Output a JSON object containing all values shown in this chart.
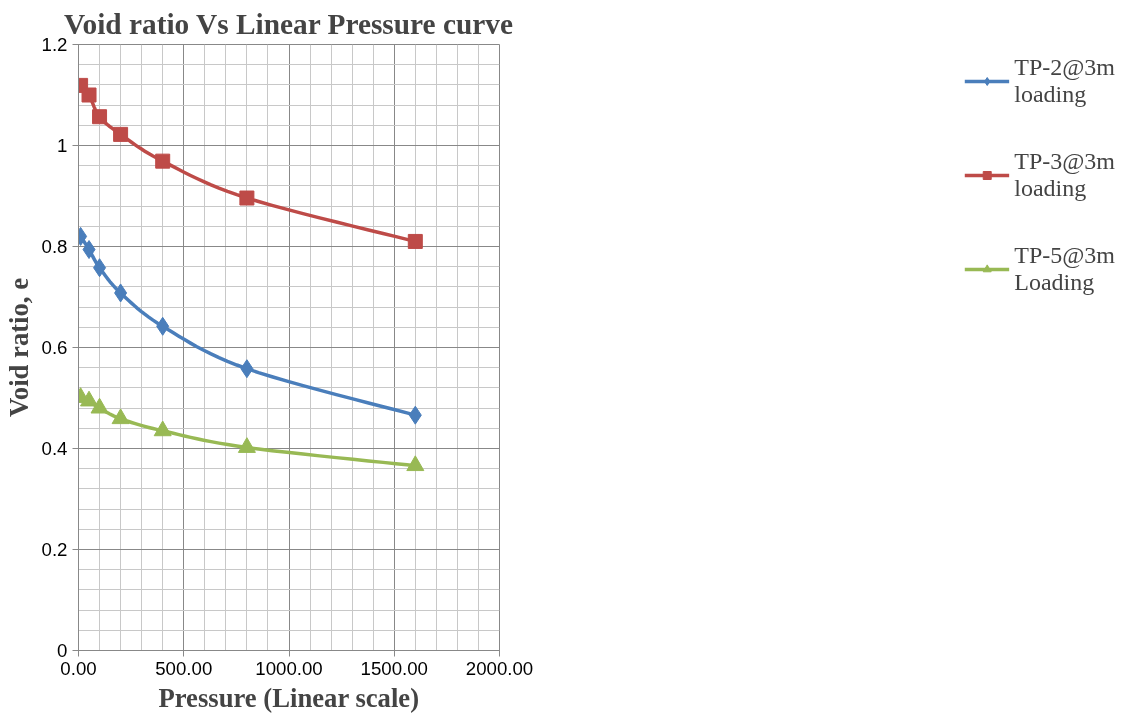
{
  "chart_data": {
    "type": "line",
    "title": "Void ratio Vs Linear Pressure curve",
    "xlabel": "Pressure (Linear scale)",
    "ylabel": "Void ratio, e",
    "x": [
      10,
      50,
      100,
      200,
      400,
      800,
      1600
    ],
    "series": [
      {
        "name": "TP-2@3m loading",
        "color": "#4a7ebb",
        "marker": "diamond",
        "values": [
          0.82,
          0.794,
          0.758,
          0.708,
          0.642,
          0.558,
          0.466
        ]
      },
      {
        "name": "TP-3@3m loading",
        "color": "#be4b48",
        "marker": "square",
        "values": [
          1.119,
          1.1,
          1.057,
          1.022,
          0.969,
          0.896,
          0.81
        ]
      },
      {
        "name": "TP-5@3m Loading",
        "color": "#98b954",
        "marker": "triangle",
        "values": [
          0.501,
          0.494,
          0.48,
          0.459,
          0.435,
          0.402,
          0.366
        ]
      }
    ],
    "xlim": [
      0,
      2000
    ],
    "xticks": [
      {
        "value": 0,
        "label": "0.00"
      },
      {
        "value": 500,
        "label": "500.00"
      },
      {
        "value": 1000,
        "label": "1000.00"
      },
      {
        "value": 1500,
        "label": "1500.00"
      },
      {
        "value": 2000,
        "label": "2000.00"
      }
    ],
    "ylim": [
      0,
      1.2
    ],
    "yticks": [
      0,
      0.2,
      0.4,
      0.6,
      0.8,
      1,
      1.2
    ],
    "grid": true,
    "legend": "right",
    "line_style": "solid"
  }
}
